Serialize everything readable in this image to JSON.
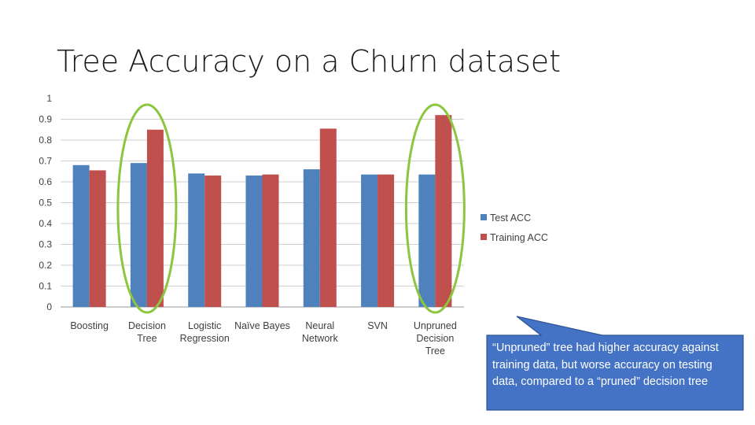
{
  "slide": {
    "title": "Tree Accuracy on a Churn dataset"
  },
  "chart_data": {
    "type": "bar",
    "categories": [
      [
        "Boosting"
      ],
      [
        "Decision",
        "Tree"
      ],
      [
        "Logistic",
        "Regression"
      ],
      [
        "Naïve Bayes"
      ],
      [
        "Neural",
        "Network"
      ],
      [
        "SVN"
      ],
      [
        "Unpruned",
        "Decision",
        "Tree"
      ]
    ],
    "series": [
      {
        "name": "Test ACC",
        "color": "#4f81bd",
        "values": [
          0.68,
          0.69,
          0.64,
          0.63,
          0.66,
          0.635,
          0.635
        ]
      },
      {
        "name": "Training ACC",
        "color": "#c0504d",
        "values": [
          0.655,
          0.85,
          0.63,
          0.635,
          0.855,
          0.635,
          0.92
        ]
      }
    ],
    "ylim": [
      0,
      1
    ],
    "yticks": [
      "0",
      "0.1",
      "0.2",
      "0.3",
      "0.4",
      "0.5",
      "0.6",
      "0.7",
      "0.8",
      "0.9",
      "1"
    ],
    "grid": true,
    "legend": "right",
    "highlighted_categories": [
      1,
      6
    ],
    "highlight_color": "#8cc63f"
  },
  "callout": {
    "text": "“Unpruned” tree had higher accuracy against training data, but worse accuracy on testing data, compared to a “pruned” decision tree",
    "color": "#4472c4",
    "border": "#2f5597"
  }
}
